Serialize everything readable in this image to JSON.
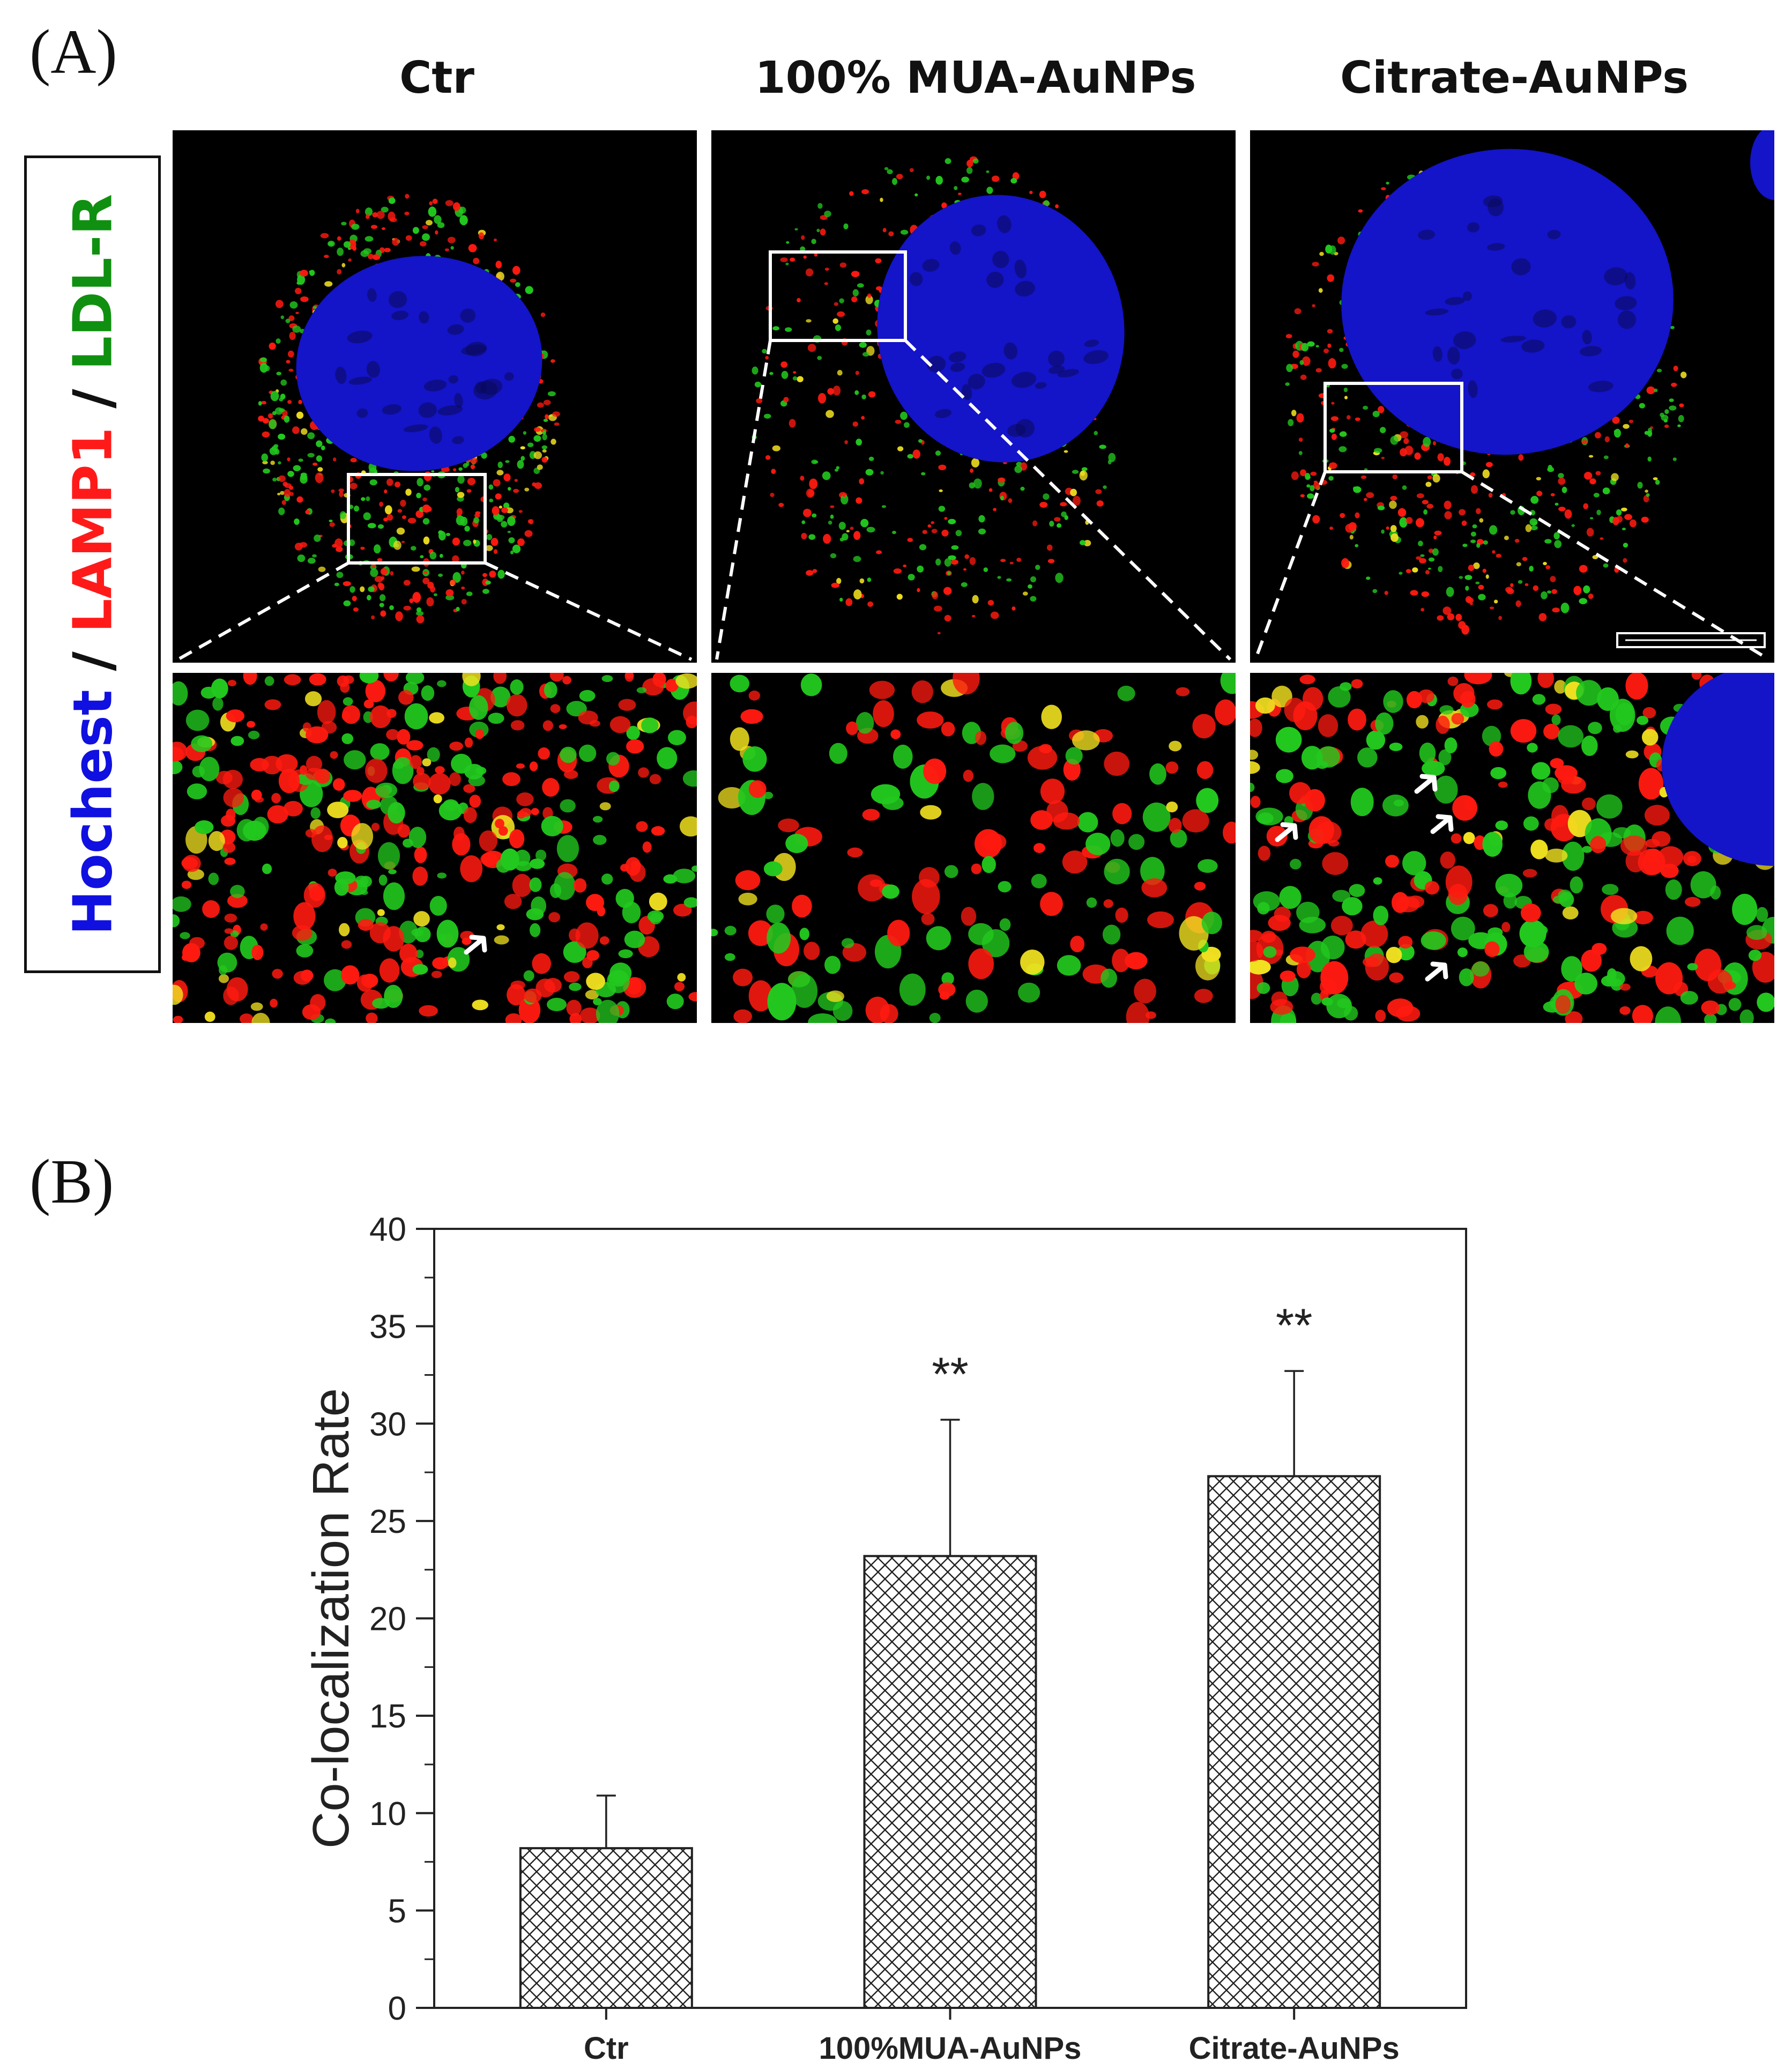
{
  "panel_a": {
    "label": "(A)",
    "columns": [
      "Ctr",
      "100% MUA-AuNPs",
      "Citrate-AuNPs"
    ],
    "stain_legend": [
      {
        "text": "Hochest",
        "color": "#1010e0"
      },
      {
        "text": " / ",
        "color": "#111111"
      },
      {
        "text": "LAMP1",
        "color": "#ff1a1a"
      },
      {
        "text": " / ",
        "color": "#111111"
      },
      {
        "text": "LDL-R",
        "color": "#109010"
      }
    ],
    "channel_colors": {
      "nucleus": "#1414c8",
      "lamp1": "#ff1a10",
      "ldlr": "#22c81e",
      "coloc": "#f0e020"
    }
  },
  "panel_b": {
    "label": "(B)"
  },
  "chart_data": {
    "type": "bar",
    "categories": [
      "Ctr",
      "100%MUA-AuNPs",
      "Citrate-AuNPs"
    ],
    "values": [
      8.2,
      23.2,
      27.3
    ],
    "error": [
      2.7,
      7.0,
      5.4
    ],
    "annotations": [
      "",
      "**",
      "**"
    ],
    "ylabel": "Co-localization Rate",
    "xlabel": "",
    "ylim": [
      0,
      40
    ],
    "yticks": [
      0,
      5,
      10,
      15,
      20,
      25,
      30,
      35,
      40
    ],
    "bar_fill": "crosshatch",
    "grid": false
  }
}
